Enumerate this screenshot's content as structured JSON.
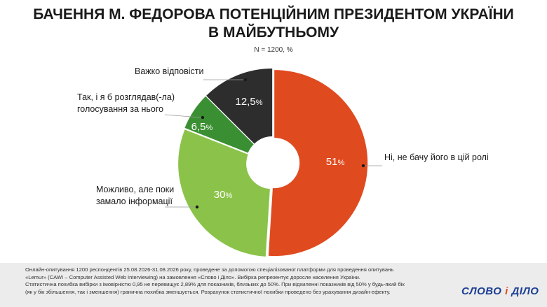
{
  "title_line1": "БАЧЕННЯ М. ФЕДОРОВА ПОТЕНЦІЙНИМ ПРЕЗИДЕНТОМ УКРАЇНИ",
  "title_line2": "В МАЙБУТНЬОМУ",
  "subtitle": "N = 1200, %",
  "chart_data": {
    "type": "pie",
    "style": "donut",
    "title": "БАЧЕННЯ М. ФЕДОРОВА ПОТЕНЦІЙНИМ ПРЕЗИДЕНТОМ УКРАЇНИ В МАЙБУТНЬОМУ",
    "unit": "%",
    "slices": [
      {
        "label": "Ні, не бачу його в цій ролі",
        "value": 51,
        "value_text": "51",
        "color": "#e04a1f",
        "label_lines": [
          "Ні, не бачу його в цій ролі"
        ]
      },
      {
        "label": "Можливо, але поки замало інформації",
        "value": 30,
        "value_text": "30",
        "color": "#8bc34a",
        "label_lines": [
          "Можливо, але поки",
          "замало інформації"
        ]
      },
      {
        "label": "Так, і я б розглядав(-ла) голосування за нього",
        "value": 6.5,
        "value_text": "6,5",
        "color": "#3b8f33",
        "label_lines": [
          "Так, і я б розглядав(-ла)",
          "голосування за нього"
        ]
      },
      {
        "label": "Важко відповісти",
        "value": 12.5,
        "value_text": "12,5",
        "color": "#2d2d2d",
        "label_lines": [
          "Важко відповісти"
        ]
      }
    ]
  },
  "footer": {
    "lines": [
      "Онлайн-опитування 1200 респондентів 25.08.2026-31.08.2026 року, проведене за допомогою спеціалізованої платформи для проведення опитувань",
      "«Lemur» (CAWI – Computer Assisted Web Interviewing) на замовлення «Слово і Діло». Вибірка репрезентує доросле населення України.",
      "Статистична похибка вибірки з імовірністю 0,95 не перевищує 2,89% для показників, близьких до 50%. При відхиленні показників від 50% у будь-який бік",
      "(як у бік збільшення, так і зменшення) гранична похибка зменшується. Розрахунок статистичної похибки проведено без урахування дизайн-ефекту."
    ]
  },
  "logo": {
    "part1": "СЛОВО",
    "part2": "і",
    "part3": "ДІЛО"
  }
}
